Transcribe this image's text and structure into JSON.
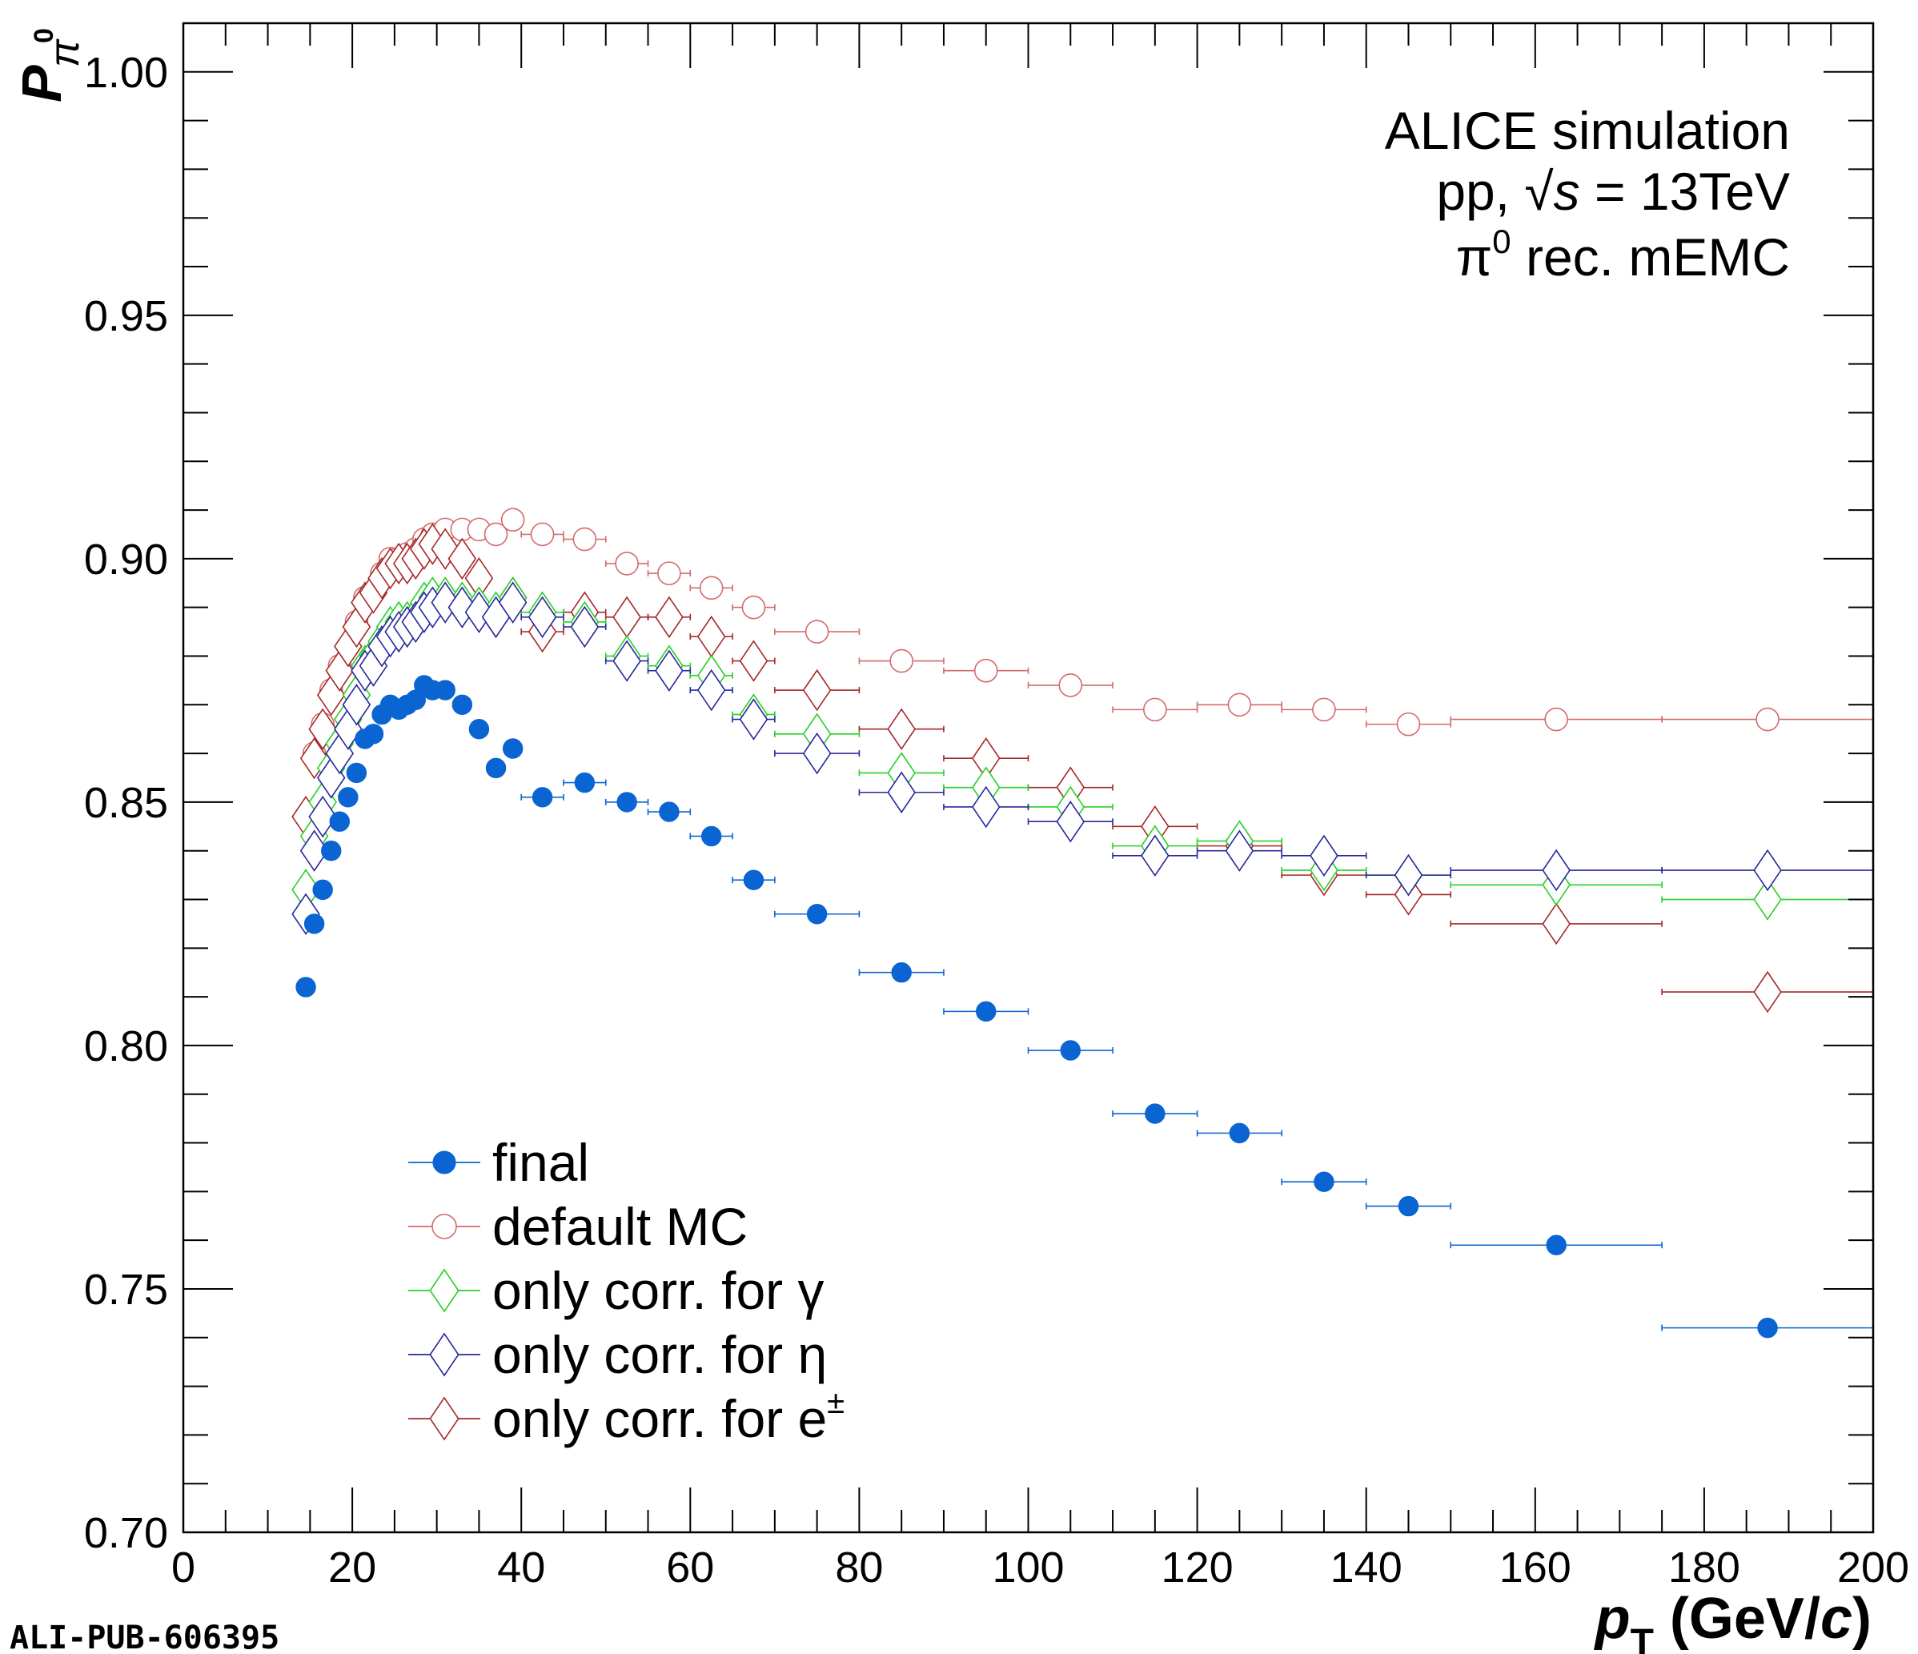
{
  "chart_data": {
    "type": "scatter",
    "ylabel_main": "P",
    "ylabel_sub": "π",
    "ylabel_sup": "0",
    "xlabel_var": "p",
    "xlabel_sub": "T",
    "xlabel_unit_open": " (GeV/",
    "xlabel_unit_c": "c",
    "xlabel_unit_close": ")",
    "xlim": [
      0,
      200
    ],
    "ylim": [
      0.7,
      1.01
    ],
    "x_ticks": [
      0,
      20,
      40,
      60,
      80,
      100,
      120,
      140,
      160,
      180,
      200
    ],
    "x_tick_labels": [
      "0",
      "20",
      "40",
      "60",
      "80",
      "100",
      "120",
      "140",
      "160",
      "180",
      "200"
    ],
    "y_ticks": [
      0.7,
      0.75,
      0.8,
      0.85,
      0.9,
      0.95,
      1.0
    ],
    "y_tick_labels": [
      "0.70",
      "0.75",
      "0.80",
      "0.85",
      "0.90",
      "0.95",
      "1.00"
    ],
    "annotation": {
      "line1": "ALICE simulation",
      "line2_prefix": "pp, ",
      "line2_root": "√",
      "line2_var": "s",
      "line2_suffix": " = 13TeV",
      "line3_pi": "π",
      "line3_sup": "0",
      "line3_rest": " rec. mEMC"
    },
    "legend_placement": "bottom-left",
    "grid": false,
    "bin_edges": [
      14,
      15,
      16,
      17,
      18,
      19,
      20,
      21,
      22,
      23,
      24,
      25,
      26,
      27,
      28,
      29,
      30,
      32,
      34,
      36,
      38,
      40,
      45,
      50,
      55,
      60,
      65,
      70,
      80,
      90,
      100,
      110,
      120,
      130,
      140,
      150,
      175,
      200
    ],
    "series": [
      {
        "name": "final",
        "color": "#0a64d2",
        "marker": "filled-circle",
        "values": [
          0.812,
          0.825,
          0.832,
          0.84,
          0.846,
          0.851,
          0.856,
          0.863,
          0.864,
          0.868,
          0.87,
          0.869,
          0.87,
          0.871,
          0.874,
          0.873,
          0.873,
          0.87,
          0.865,
          0.857,
          0.861,
          0.851,
          0.854,
          0.85,
          0.848,
          0.843,
          0.834,
          0.827,
          0.815,
          0.807,
          0.799,
          0.786,
          0.782,
          0.772,
          0.767,
          0.759,
          0.742
        ]
      },
      {
        "name": "default MC",
        "color": "#d46a6a",
        "marker": "open-circle",
        "values": [
          0.847,
          0.86,
          0.866,
          0.873,
          0.878,
          0.882,
          0.887,
          0.892,
          0.893,
          0.897,
          0.9,
          0.9,
          0.901,
          0.902,
          0.904,
          0.905,
          0.906,
          0.906,
          0.906,
          0.905,
          0.908,
          0.905,
          0.904,
          0.899,
          0.897,
          0.894,
          0.89,
          0.885,
          0.879,
          0.877,
          0.874,
          0.869,
          0.87,
          0.869,
          0.866,
          0.867,
          0.867
        ]
      },
      {
        "name": "only corr. for γ",
        "color": "#27d027",
        "marker": "open-diamond",
        "values": [
          0.832,
          0.843,
          0.85,
          0.857,
          0.862,
          0.867,
          0.872,
          0.878,
          0.88,
          0.883,
          0.886,
          0.887,
          0.887,
          0.888,
          0.891,
          0.892,
          0.892,
          0.891,
          0.89,
          0.889,
          0.892,
          0.889,
          0.887,
          0.88,
          0.878,
          0.876,
          0.868,
          0.864,
          0.856,
          0.853,
          0.849,
          0.841,
          0.842,
          0.836,
          0.835,
          0.833,
          0.83
        ]
      },
      {
        "name": "only corr. for η",
        "color": "#27279c",
        "marker": "open-diamond",
        "values": [
          0.827,
          0.84,
          0.847,
          0.855,
          0.86,
          0.865,
          0.87,
          0.877,
          0.878,
          0.882,
          0.884,
          0.885,
          0.886,
          0.887,
          0.889,
          0.89,
          0.891,
          0.89,
          0.889,
          0.888,
          0.891,
          0.888,
          0.886,
          0.879,
          0.877,
          0.873,
          0.867,
          0.86,
          0.852,
          0.849,
          0.846,
          0.839,
          0.84,
          0.839,
          0.835,
          0.836,
          0.836
        ]
      },
      {
        "name": "only corr. for e",
        "name_sup": "±",
        "color": "#a52828",
        "marker": "open-diamond",
        "values": [
          0.847,
          0.859,
          0.865,
          0.872,
          0.877,
          0.882,
          0.886,
          0.891,
          0.893,
          0.896,
          0.898,
          0.899,
          0.899,
          0.9,
          0.902,
          0.903,
          0.902,
          0.9,
          0.896,
          0.888,
          0.892,
          0.885,
          0.889,
          0.888,
          0.888,
          0.884,
          0.879,
          0.873,
          0.865,
          0.859,
          0.853,
          0.845,
          0.841,
          0.835,
          0.831,
          0.825,
          0.811
        ]
      }
    ]
  },
  "footer_label": "ALI-PUB-606395"
}
